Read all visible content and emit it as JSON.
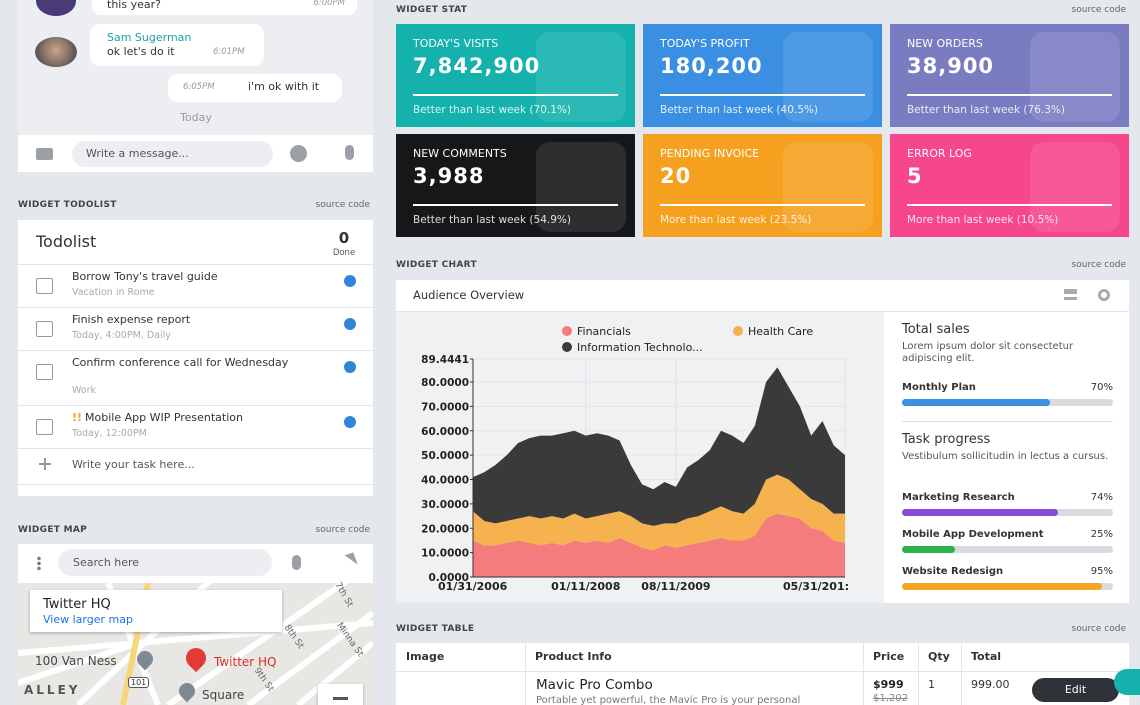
{
  "chat": {
    "messages": [
      {
        "text": "this year?",
        "time": "6:00PM"
      },
      {
        "sender": "Sam Sugerman",
        "text": "ok let's do it",
        "time": "6:01PM"
      },
      {
        "text": "i'm ok with it",
        "time": "6:05PM"
      }
    ],
    "day": "Today",
    "input_placeholder": "Write a message..."
  },
  "todolist": {
    "section": "WIDGET TODOLIST",
    "source": "source code",
    "title": "Todolist",
    "done_count": "0",
    "done_label": "Done",
    "items": [
      {
        "text": "Borrow Tony's travel guide",
        "sub": "Vacation in Rome"
      },
      {
        "text": "Finish expense report",
        "sub": "Today, 4:00PM, Daily"
      },
      {
        "text": "Confirm conference call for Wednesday",
        "sub": "Work"
      },
      {
        "flag": "!!",
        "text": "Mobile App WIP Presentation",
        "sub": "Today, 12:00PM"
      }
    ],
    "input_placeholder": "Write your task here..."
  },
  "map": {
    "section": "WIDGET MAP",
    "source": "source code",
    "search_placeholder": "Search here",
    "place": "Twitter HQ",
    "link": "View larger map",
    "labels": [
      "100 Van Ness",
      "Twitter HQ",
      "Square",
      "ALLEY",
      "7th St",
      "Minna St",
      "8th St",
      "9th St",
      "101"
    ]
  },
  "stats": {
    "section": "WIDGET STAT",
    "source": "source code",
    "cards": [
      {
        "title": "TODAY'S VISITS",
        "value": "7,842,900",
        "footer": "Better than last week (70.1%)",
        "color": "#14b1ad"
      },
      {
        "title": "TODAY'S PROFIT",
        "value": "180,200",
        "footer": "Better than last week (40.5%)",
        "color": "#3b8fe3"
      },
      {
        "title": "NEW ORDERS",
        "value": "38,900",
        "footer": "Better than last week (76.3%)",
        "color": "#7a7cc2"
      },
      {
        "title": "NEW COMMENTS",
        "value": "3,988",
        "footer": "Better than last week (54.9%)",
        "color": "#161718"
      },
      {
        "title": "PENDING INVOICE",
        "value": "20",
        "footer": "More than last week (23.5%)",
        "color": "#f5a11f"
      },
      {
        "title": "ERROR LOG",
        "value": "5",
        "footer": "More than last week (10.5%)",
        "color": "#f6468c"
      }
    ]
  },
  "chart_widget": {
    "section": "WIDGET CHART",
    "source": "source code",
    "title": "Audience Overview",
    "side": {
      "groups": [
        {
          "title": "Total sales",
          "desc": "Lorem ipsum dolor sit consectetur adipiscing elit.",
          "bars": [
            {
              "name": "Monthly Plan",
              "value": 70,
              "value_label": "70%",
              "color": "#3d8fe0"
            }
          ]
        },
        {
          "title": "Task progress",
          "desc": "Vestibulum sollicitudin in lectus a cursus.",
          "bars": [
            {
              "name": "Marketing Research",
              "value": 74,
              "value_label": "74%",
              "color": "#8a4bd8"
            },
            {
              "name": "Mobile App Development",
              "value": 25,
              "value_label": "25%",
              "color": "#2db34a"
            },
            {
              "name": "Website Redesign",
              "value": 95,
              "value_label": "95%",
              "color": "#f5a623"
            }
          ]
        }
      ]
    }
  },
  "chart_data": {
    "type": "area",
    "stacked": true,
    "grid": true,
    "categories": [
      "01/31/2006",
      null,
      null,
      null,
      null,
      null,
      null,
      null,
      null,
      null,
      "01/11/2008",
      null,
      null,
      null,
      null,
      null,
      null,
      null,
      "08/11/2009",
      null,
      null,
      null,
      null,
      null,
      null,
      null,
      null,
      null,
      null,
      null,
      null,
      null,
      null,
      "05/31/201:"
    ],
    "series": [
      {
        "name": "Financials",
        "color": "#f47c7c",
        "values": [
          15,
          13,
          13,
          14,
          15,
          14,
          13,
          14,
          13,
          15,
          14,
          15,
          14,
          16,
          14,
          12,
          11,
          13,
          12,
          13,
          14,
          15,
          16,
          15,
          15,
          17,
          24,
          26,
          25,
          24,
          20,
          19,
          15,
          14
        ]
      },
      {
        "name": "Health Care",
        "color": "#f5b24e",
        "values": [
          12,
          10,
          9,
          9,
          9,
          11,
          11,
          11,
          11,
          11,
          10,
          10,
          12,
          11,
          11,
          10,
          10,
          9,
          10,
          11,
          11,
          12,
          13,
          12,
          11,
          13,
          16,
          16,
          15,
          12,
          12,
          11,
          11,
          12
        ]
      },
      {
        "name": "Information Technolo...",
        "color": "#3a3a3a",
        "values": [
          14,
          20,
          24,
          27,
          31,
          32,
          34,
          33,
          35,
          34,
          34,
          34,
          32,
          29,
          21,
          16,
          15,
          17,
          15,
          21,
          23,
          25,
          31,
          31,
          29,
          32,
          40,
          44,
          38,
          34,
          26,
          34,
          28,
          24
        ]
      }
    ],
    "ylim": [
      0,
      89.4441
    ],
    "yticks": [
      {
        "value": 0,
        "label": "0.0000"
      },
      {
        "value": 10,
        "label": "10.0000"
      },
      {
        "value": 20,
        "label": "20.0000"
      },
      {
        "value": 30,
        "label": "30.0000"
      },
      {
        "value": 40,
        "label": "40.0000"
      },
      {
        "value": 50,
        "label": "50.0000"
      },
      {
        "value": 60,
        "label": "60.0000"
      },
      {
        "value": 70,
        "label": "70.0000"
      },
      {
        "value": 80,
        "label": "80.0000"
      },
      {
        "value": 89.4441,
        "label": "89.4441"
      }
    ]
  },
  "table": {
    "section": "WIDGET TABLE",
    "source": "source code",
    "headers": [
      "Image",
      "Product Info",
      "Price",
      "Qty",
      "Total"
    ],
    "rows": [
      {
        "name": "Mavic Pro Combo",
        "desc": "Portable yet powerful, the Mavic Pro is your personal",
        "price": "$999",
        "old_price": "$1,202",
        "qty": "1",
        "total": "999.00",
        "action": "Edit"
      }
    ]
  }
}
